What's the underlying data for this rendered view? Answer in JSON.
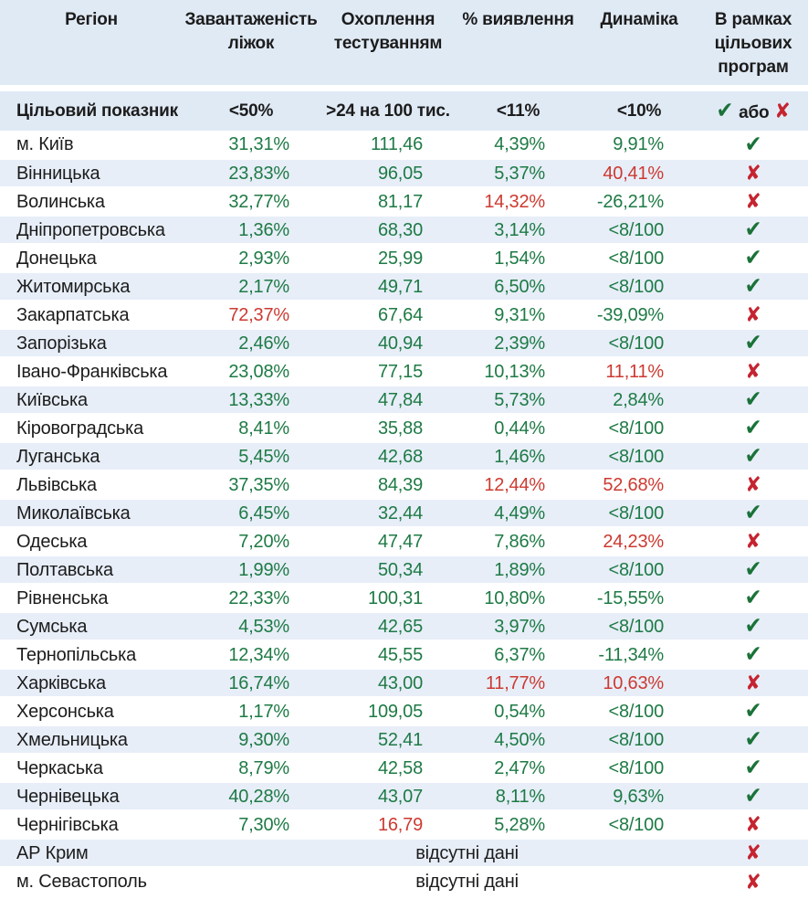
{
  "colors": {
    "band_blue": "#e7eef8",
    "header_blue": "#e0eaf5",
    "green": "#1e7a45",
    "red": "#cc3a31",
    "check_green": "#1a7238",
    "cross_red": "#c42430",
    "text_black": "#1c1c1c"
  },
  "icons": {
    "pass": "✔",
    "fail": "✘"
  },
  "chart_data": {
    "type": "table",
    "columns": [
      "Регіон",
      "Завантаженість ліжок",
      "Охоплення тестуванням",
      "% виявлення",
      "Динаміка",
      "В рамках цільових програм"
    ],
    "target": {
      "label": "Цільовий показник",
      "beds": "<50%",
      "testing": ">24 на 100 тис.",
      "detection": "<11%",
      "dynamics": "<10%",
      "or_label": "або"
    },
    "no_data_label": "відсутні дані",
    "rows": [
      {
        "region": "м. Київ",
        "beds": "31,31%",
        "beds_c": "g",
        "testing": "111,46",
        "testing_c": "g",
        "detection": "4,39%",
        "detection_c": "g",
        "dynamics": "9,91%",
        "dynamics_c": "g",
        "status": "pass"
      },
      {
        "region": "Вінницька",
        "beds": "23,83%",
        "beds_c": "g",
        "testing": "96,05",
        "testing_c": "g",
        "detection": "5,37%",
        "detection_c": "g",
        "dynamics": "40,41%",
        "dynamics_c": "r",
        "status": "fail"
      },
      {
        "region": "Волинська",
        "beds": "32,77%",
        "beds_c": "g",
        "testing": "81,17",
        "testing_c": "g",
        "detection": "14,32%",
        "detection_c": "r",
        "dynamics": "-26,21%",
        "dynamics_c": "g",
        "status": "fail"
      },
      {
        "region": "Дніпропетровська",
        "beds": "1,36%",
        "beds_c": "g",
        "testing": "68,30",
        "testing_c": "g",
        "detection": "3,14%",
        "detection_c": "g",
        "dynamics": "<8/100",
        "dynamics_c": "g",
        "status": "pass"
      },
      {
        "region": "Донецька",
        "beds": "2,93%",
        "beds_c": "g",
        "testing": "25,99",
        "testing_c": "g",
        "detection": "1,54%",
        "detection_c": "g",
        "dynamics": "<8/100",
        "dynamics_c": "g",
        "status": "pass"
      },
      {
        "region": "Житомирська",
        "beds": "2,17%",
        "beds_c": "g",
        "testing": "49,71",
        "testing_c": "g",
        "detection": "6,50%",
        "detection_c": "g",
        "dynamics": "<8/100",
        "dynamics_c": "g",
        "status": "pass"
      },
      {
        "region": "Закарпатська",
        "beds": "72,37%",
        "beds_c": "r",
        "testing": "67,64",
        "testing_c": "g",
        "detection": "9,31%",
        "detection_c": "g",
        "dynamics": "-39,09%",
        "dynamics_c": "g",
        "status": "fail"
      },
      {
        "region": "Запорізька",
        "beds": "2,46%",
        "beds_c": "g",
        "testing": "40,94",
        "testing_c": "g",
        "detection": "2,39%",
        "detection_c": "g",
        "dynamics": "<8/100",
        "dynamics_c": "g",
        "status": "pass"
      },
      {
        "region": "Івано-Франківська",
        "beds": "23,08%",
        "beds_c": "g",
        "testing": "77,15",
        "testing_c": "g",
        "detection": "10,13%",
        "detection_c": "g",
        "dynamics": "11,11%",
        "dynamics_c": "r",
        "status": "fail"
      },
      {
        "region": "Київська",
        "beds": "13,33%",
        "beds_c": "g",
        "testing": "47,84",
        "testing_c": "g",
        "detection": "5,73%",
        "detection_c": "g",
        "dynamics": "2,84%",
        "dynamics_c": "g",
        "status": "pass"
      },
      {
        "region": "Кіровоградська",
        "beds": "8,41%",
        "beds_c": "g",
        "testing": "35,88",
        "testing_c": "g",
        "detection": "0,44%",
        "detection_c": "g",
        "dynamics": "<8/100",
        "dynamics_c": "g",
        "status": "pass"
      },
      {
        "region": "Луганська",
        "beds": "5,45%",
        "beds_c": "g",
        "testing": "42,68",
        "testing_c": "g",
        "detection": "1,46%",
        "detection_c": "g",
        "dynamics": "<8/100",
        "dynamics_c": "g",
        "status": "pass"
      },
      {
        "region": "Львівська",
        "beds": "37,35%",
        "beds_c": "g",
        "testing": "84,39",
        "testing_c": "g",
        "detection": "12,44%",
        "detection_c": "r",
        "dynamics": "52,68%",
        "dynamics_c": "r",
        "status": "fail"
      },
      {
        "region": "Миколаївська",
        "beds": "6,45%",
        "beds_c": "g",
        "testing": "32,44",
        "testing_c": "g",
        "detection": "4,49%",
        "detection_c": "g",
        "dynamics": "<8/100",
        "dynamics_c": "g",
        "status": "pass"
      },
      {
        "region": "Одеська",
        "beds": "7,20%",
        "beds_c": "g",
        "testing": "47,47",
        "testing_c": "g",
        "detection": "7,86%",
        "detection_c": "g",
        "dynamics": "24,23%",
        "dynamics_c": "r",
        "status": "fail"
      },
      {
        "region": "Полтавська",
        "beds": "1,99%",
        "beds_c": "g",
        "testing": "50,34",
        "testing_c": "g",
        "detection": "1,89%",
        "detection_c": "g",
        "dynamics": "<8/100",
        "dynamics_c": "g",
        "status": "pass"
      },
      {
        "region": "Рівненська",
        "beds": "22,33%",
        "beds_c": "g",
        "testing": "100,31",
        "testing_c": "g",
        "detection": "10,80%",
        "detection_c": "g",
        "dynamics": "-15,55%",
        "dynamics_c": "g",
        "status": "pass"
      },
      {
        "region": "Сумська",
        "beds": "4,53%",
        "beds_c": "g",
        "testing": "42,65",
        "testing_c": "g",
        "detection": "3,97%",
        "detection_c": "g",
        "dynamics": "<8/100",
        "dynamics_c": "g",
        "status": "pass"
      },
      {
        "region": "Тернопільська",
        "beds": "12,34%",
        "beds_c": "g",
        "testing": "45,55",
        "testing_c": "g",
        "detection": "6,37%",
        "detection_c": "g",
        "dynamics": "-11,34%",
        "dynamics_c": "g",
        "status": "pass"
      },
      {
        "region": "Харківська",
        "beds": "16,74%",
        "beds_c": "g",
        "testing": "43,00",
        "testing_c": "g",
        "detection": "11,77%",
        "detection_c": "r",
        "dynamics": "10,63%",
        "dynamics_c": "r",
        "status": "fail"
      },
      {
        "region": "Херсонська",
        "beds": "1,17%",
        "beds_c": "g",
        "testing": "109,05",
        "testing_c": "g",
        "detection": "0,54%",
        "detection_c": "g",
        "dynamics": "<8/100",
        "dynamics_c": "g",
        "status": "pass"
      },
      {
        "region": "Хмельницька",
        "beds": "9,30%",
        "beds_c": "g",
        "testing": "52,41",
        "testing_c": "g",
        "detection": "4,50%",
        "detection_c": "g",
        "dynamics": "<8/100",
        "dynamics_c": "g",
        "status": "pass"
      },
      {
        "region": "Черкаська",
        "beds": "8,79%",
        "beds_c": "g",
        "testing": "42,58",
        "testing_c": "g",
        "detection": "2,47%",
        "detection_c": "g",
        "dynamics": "<8/100",
        "dynamics_c": "g",
        "status": "pass"
      },
      {
        "region": "Чернівецька",
        "beds": "40,28%",
        "beds_c": "g",
        "testing": "43,07",
        "testing_c": "g",
        "detection": "8,11%",
        "detection_c": "g",
        "dynamics": "9,63%",
        "dynamics_c": "g",
        "status": "pass"
      },
      {
        "region": "Чернігівська",
        "beds": "7,30%",
        "beds_c": "g",
        "testing": "16,79",
        "testing_c": "r",
        "detection": "5,28%",
        "detection_c": "g",
        "dynamics": "<8/100",
        "dynamics_c": "g",
        "status": "fail"
      },
      {
        "region": "АР Крим",
        "no_data": true,
        "status": "fail"
      },
      {
        "region": "м. Севастополь",
        "no_data": true,
        "status": "fail"
      }
    ]
  }
}
